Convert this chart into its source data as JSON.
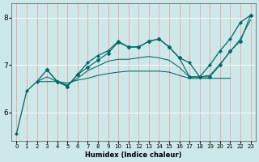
{
  "title": "",
  "xlabel": "Humidex (Indice chaleur)",
  "ylabel": "",
  "bg_color": "#cce8e8",
  "line_color": "#006666",
  "grid_color_v": "#f0a0a0",
  "grid_color_h": "#ffffff",
  "yticks": [
    6,
    7,
    8
  ],
  "xticks": [
    0,
    1,
    2,
    3,
    4,
    5,
    6,
    7,
    8,
    9,
    10,
    11,
    12,
    13,
    14,
    15,
    16,
    17,
    18,
    19,
    20,
    21,
    22,
    23
  ],
  "xlim": [
    -0.5,
    23.5
  ],
  "ylim": [
    5.4,
    8.3
  ],
  "lines": [
    {
      "x": [
        0,
        1,
        2,
        3,
        4,
        5,
        6,
        7,
        8,
        9,
        10,
        11,
        12,
        13,
        14,
        15,
        16,
        17,
        18,
        19,
        20,
        21,
        22,
        23
      ],
      "y": [
        5.55,
        6.45,
        6.65,
        6.9,
        6.65,
        6.55,
        6.8,
        7.05,
        7.2,
        7.3,
        7.5,
        7.38,
        7.38,
        7.5,
        7.55,
        7.38,
        7.15,
        7.05,
        6.75,
        7.0,
        7.3,
        7.55,
        7.9,
        8.05
      ],
      "marker": "D",
      "markersize": 2.0,
      "linewidth": 0.9
    },
    {
      "x": [
        3,
        4,
        5,
        6,
        7,
        8,
        9,
        10,
        11,
        12,
        13,
        14,
        15,
        16,
        17,
        18,
        19,
        20,
        21,
        22,
        23
      ],
      "y": [
        6.9,
        6.65,
        6.55,
        6.8,
        6.95,
        7.1,
        7.25,
        7.48,
        7.38,
        7.38,
        7.5,
        7.55,
        7.38,
        7.15,
        6.75,
        6.75,
        6.75,
        7.0,
        7.3,
        7.5,
        8.05
      ],
      "marker": "P",
      "markersize": 3.0,
      "linewidth": 0.8
    },
    {
      "x": [
        2,
        3,
        4,
        5,
        6,
        7,
        8,
        9,
        10,
        11,
        12,
        13,
        14,
        15,
        16,
        17,
        18,
        19,
        20,
        21
      ],
      "y": [
        6.65,
        6.65,
        6.65,
        6.62,
        6.68,
        6.72,
        6.78,
        6.82,
        6.85,
        6.87,
        6.87,
        6.87,
        6.87,
        6.85,
        6.78,
        6.72,
        6.72,
        6.72,
        6.72,
        6.72
      ],
      "marker": null,
      "markersize": 0,
      "linewidth": 0.75
    },
    {
      "x": [
        2,
        3,
        4,
        5,
        6,
        7,
        8,
        9,
        10,
        11,
        12,
        13,
        14,
        15,
        16,
        17,
        18,
        19,
        20,
        21,
        22,
        23
      ],
      "y": [
        6.65,
        6.75,
        6.65,
        6.58,
        6.72,
        6.88,
        6.98,
        7.08,
        7.12,
        7.12,
        7.15,
        7.18,
        7.15,
        7.1,
        6.95,
        6.75,
        6.75,
        6.78,
        7.02,
        7.28,
        7.55,
        7.95
      ],
      "marker": null,
      "markersize": 0,
      "linewidth": 0.75
    }
  ]
}
